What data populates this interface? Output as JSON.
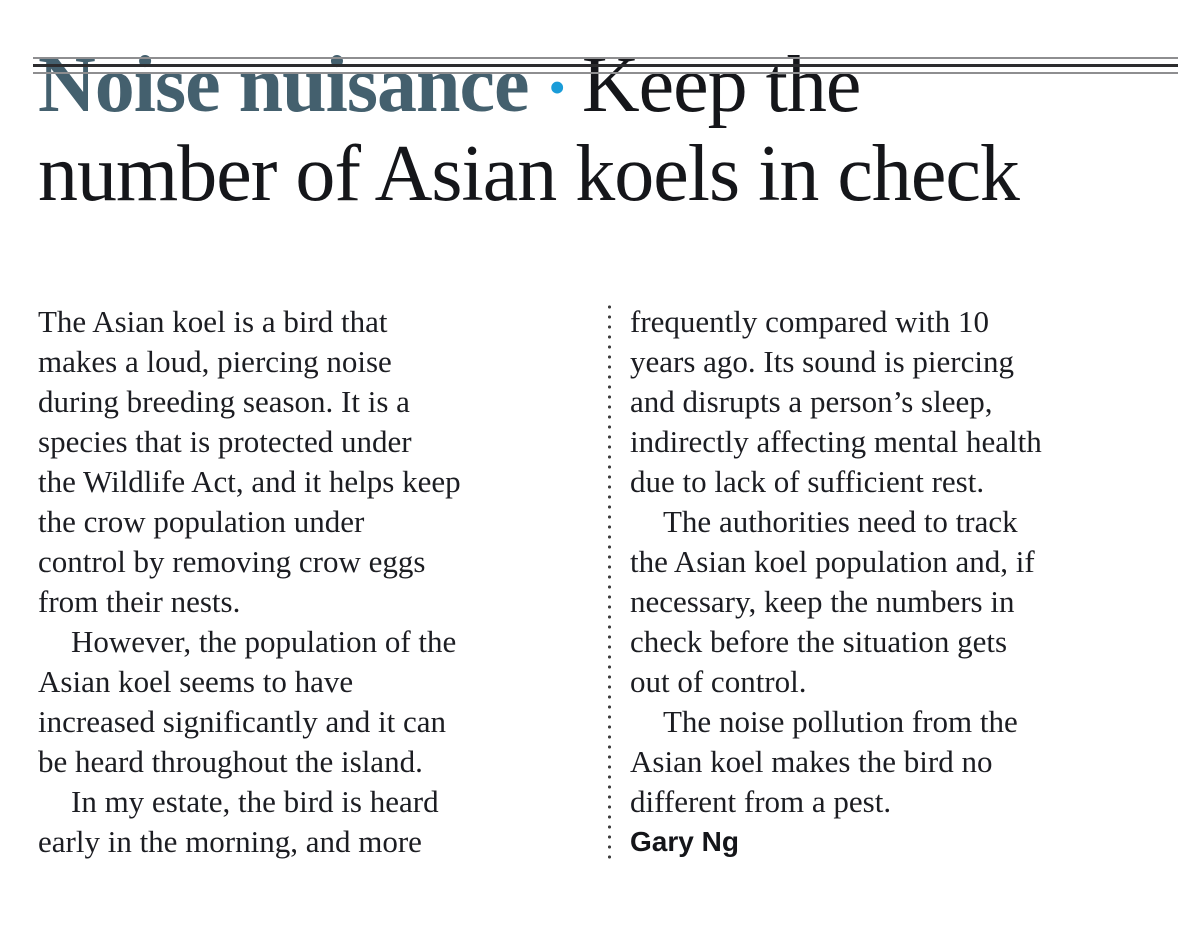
{
  "colors": {
    "kicker": "#44606e",
    "bullet": "#1a9cd8",
    "headline": "#15161a",
    "body": "#1c1d22",
    "rule-thin": "#8e8e90",
    "rule-thick": "#2c2c2e",
    "divider": "#3c3c3c",
    "paper": "#ffffff"
  },
  "headline": {
    "kicker": "Noise nuisance",
    "separator": "•",
    "title": "Keep the\nnumber of Asian koels in check"
  },
  "article": {
    "left": [
      "The Asian koel is a bird that\nmakes a loud, piercing noise\nduring breeding season. It is a\nspecies that is protected under\nthe Wildlife Act, and it helps keep\nthe crow population under\ncontrol by removing crow eggs\nfrom their nests.",
      "However, the population of the\nAsian koel seems to have\nincreased significantly and it can\nbe heard throughout the island.",
      "In my estate, the bird is heard\nearly in the morning, and more"
    ],
    "right": [
      "frequently compared with 10\nyears ago. Its sound is piercing\nand disrupts a person’s sleep,\nindirectly affecting mental health\ndue to lack of sufficient rest.",
      "The authorities need to track\nthe Asian koel population and, if\nnecessary, keep the numbers in\ncheck before the situation gets\nout of control.",
      "The noise pollution from the\nAsian koel makes the bird no\ndifferent from a pest."
    ],
    "signature": "Gary Ng"
  }
}
